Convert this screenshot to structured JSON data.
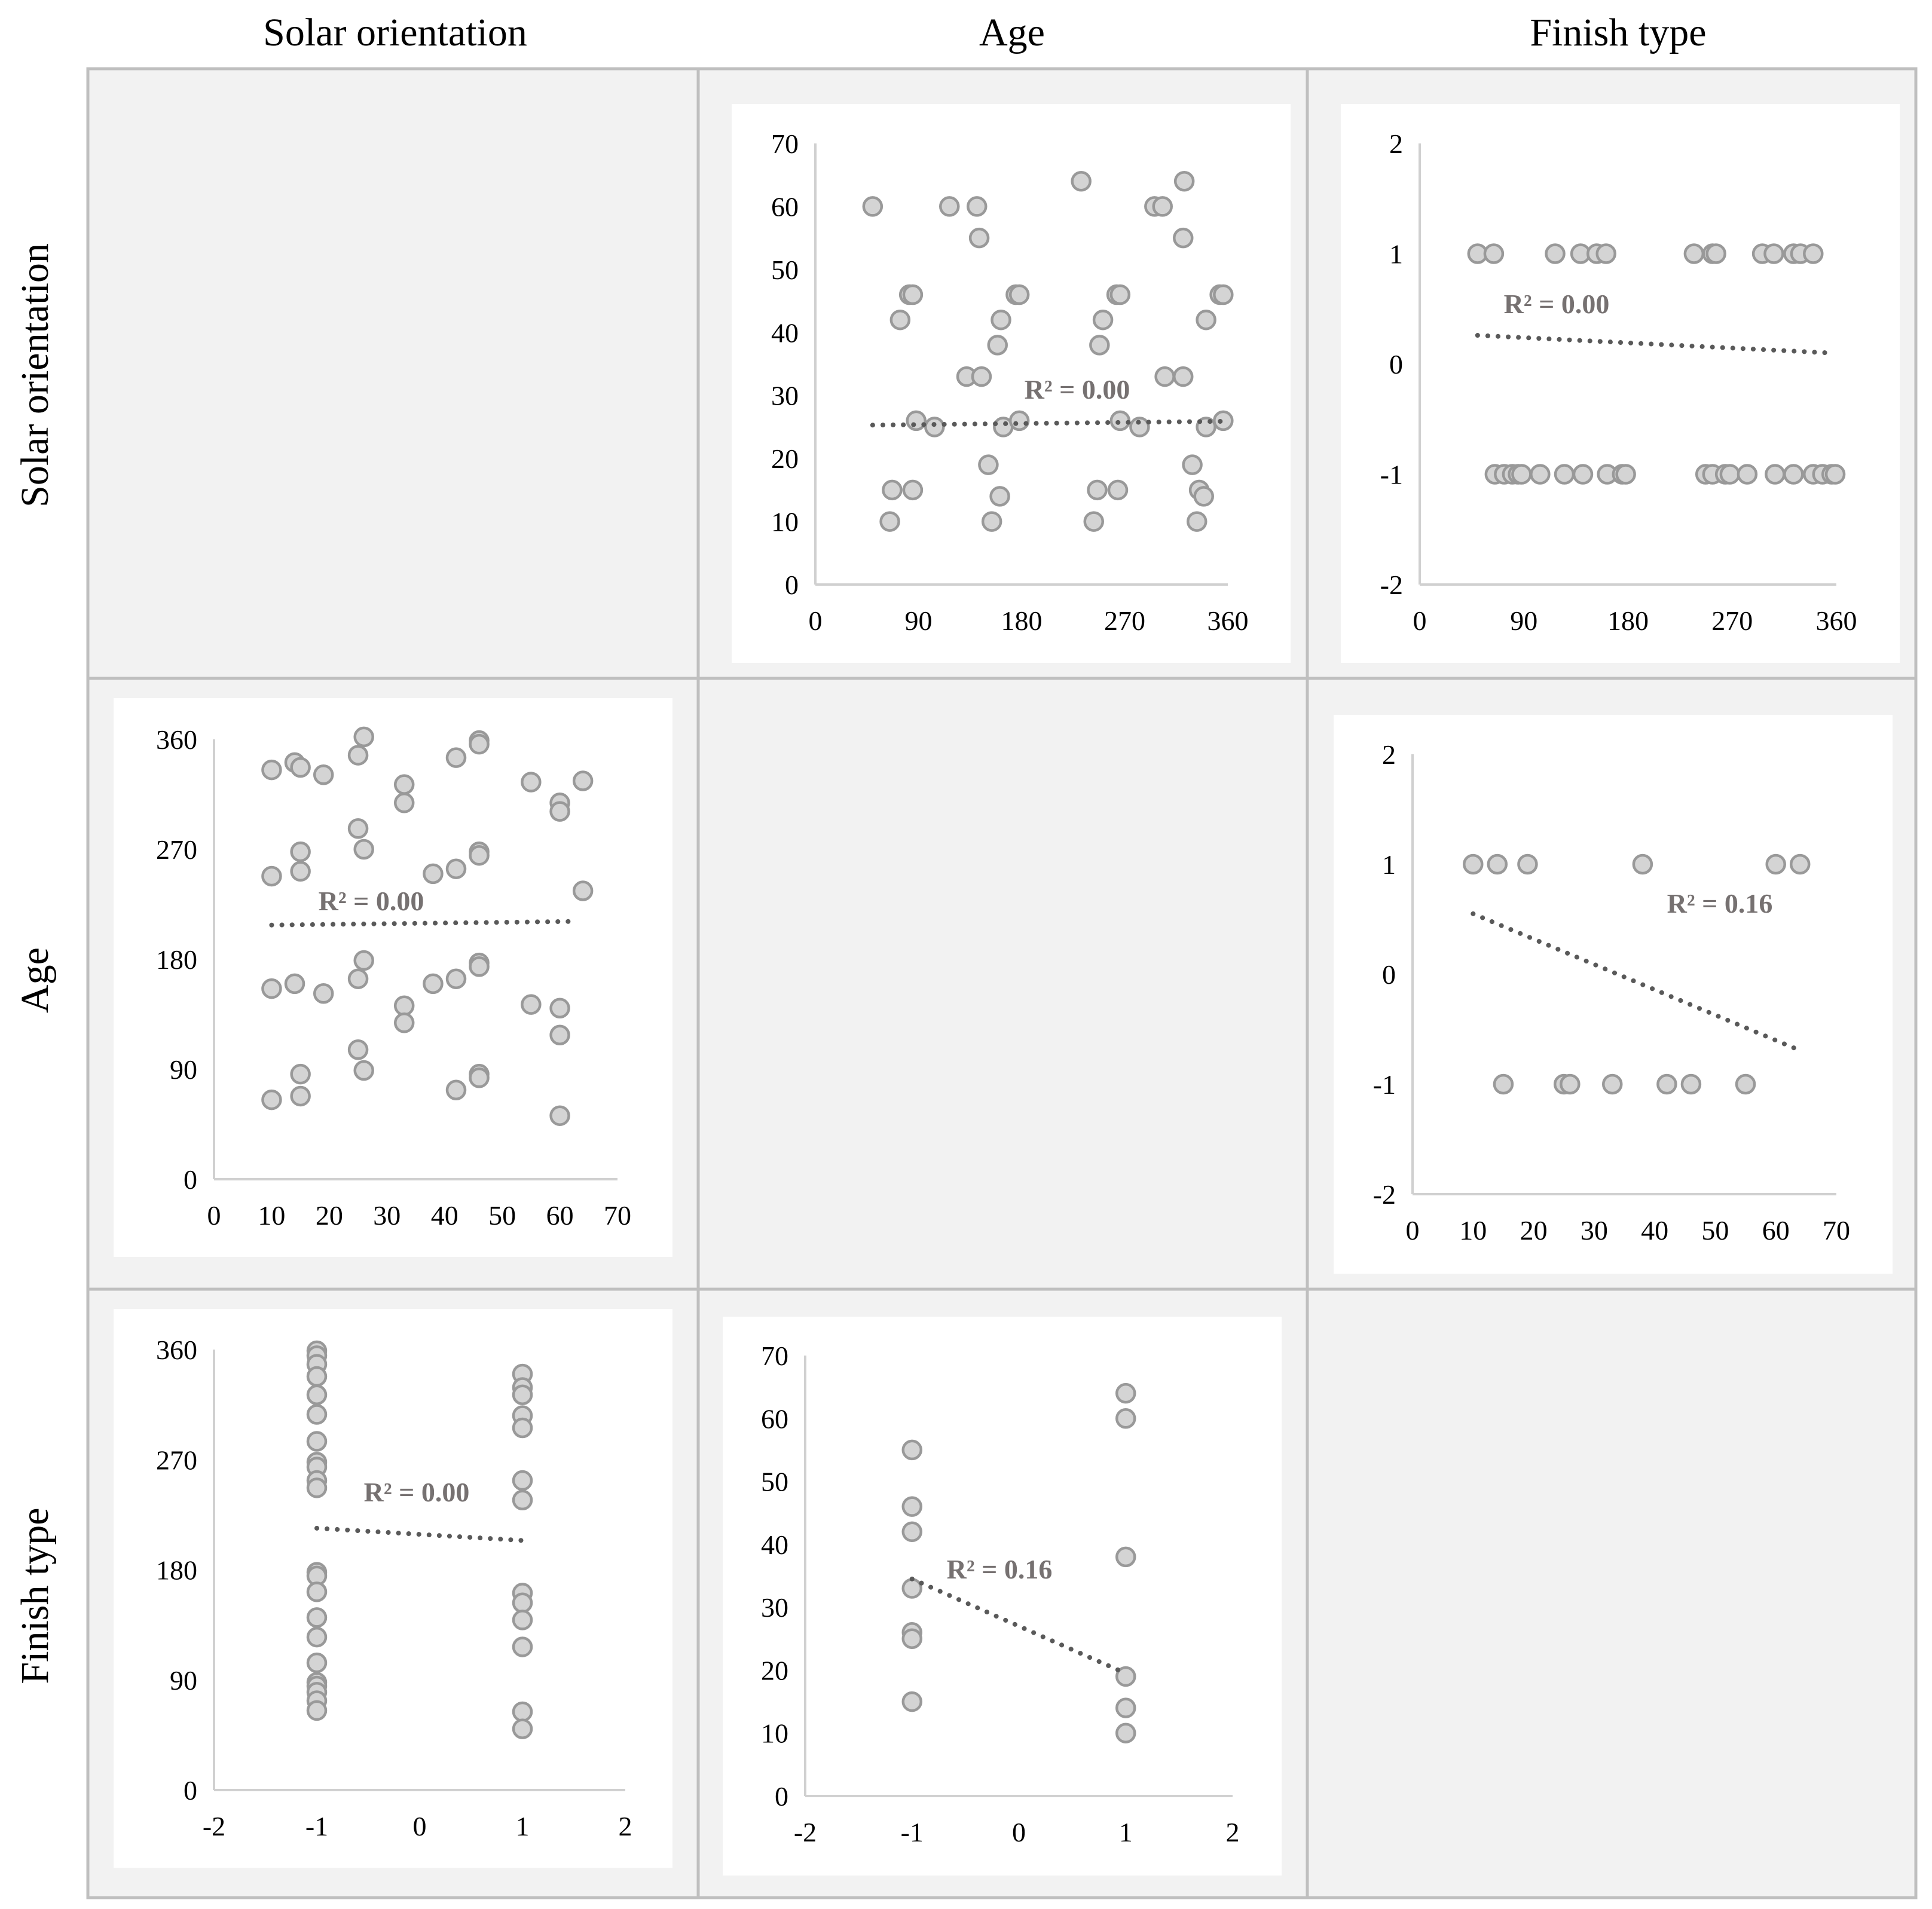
{
  "headers": {
    "columns": [
      "Solar orientation",
      "Age",
      "Finish type"
    ],
    "rows": [
      "Solar orientation",
      "Age",
      "Finish type"
    ]
  },
  "colors": {
    "cell_bg": "#f2f2f2",
    "panel_bg": "#ffffff",
    "grid_line": "#bfbfbf",
    "axis_line": "#d0d0d0",
    "marker_fill": "#d4d4d4",
    "marker_stroke": "#999999",
    "trend": "#595959",
    "r2_text": "#767171",
    "text": "#000000"
  },
  "chart_data": [
    {
      "id": "orientation-vs-age",
      "type": "scatter",
      "row": 0,
      "col": 1,
      "title": "",
      "xlabel": "",
      "ylabel": "",
      "xlim": [
        0,
        360
      ],
      "ylim": [
        0,
        70
      ],
      "xticks": [
        0,
        90,
        180,
        270,
        360
      ],
      "yticks": [
        0,
        10,
        20,
        30,
        40,
        50,
        60,
        70
      ],
      "r2_label": "R² = 0.00",
      "trendline": {
        "x": [
          50,
          355
        ],
        "y": [
          25.3,
          25.9
        ]
      },
      "points": [
        [
          50,
          60
        ],
        [
          65,
          10
        ],
        [
          67,
          15
        ],
        [
          74,
          42
        ],
        [
          82,
          46
        ],
        [
          85,
          46
        ],
        [
          85,
          15
        ],
        [
          88,
          26
        ],
        [
          104,
          25
        ],
        [
          117,
          60
        ],
        [
          132,
          33
        ],
        [
          141,
          60
        ],
        [
          143,
          55
        ],
        [
          145,
          33
        ],
        [
          151,
          19
        ],
        [
          154,
          10
        ],
        [
          159,
          38
        ],
        [
          161,
          14
        ],
        [
          162,
          42
        ],
        [
          164,
          25
        ],
        [
          175,
          46
        ],
        [
          178,
          46
        ],
        [
          178,
          26
        ],
        [
          232,
          64
        ],
        [
          243,
          10
        ],
        [
          246,
          15
        ],
        [
          248,
          38
        ],
        [
          251,
          42
        ],
        [
          263,
          46
        ],
        [
          266,
          46
        ],
        [
          264,
          15
        ],
        [
          266,
          26
        ],
        [
          283,
          25
        ],
        [
          296,
          60
        ],
        [
          303,
          60
        ],
        [
          305,
          33
        ],
        [
          321,
          33
        ],
        [
          321,
          55
        ],
        [
          322,
          64
        ],
        [
          329,
          19
        ],
        [
          333,
          10
        ],
        [
          335,
          15
        ],
        [
          339,
          14
        ],
        [
          341,
          25
        ],
        [
          341,
          42
        ],
        [
          353,
          46
        ],
        [
          356,
          46
        ],
        [
          356,
          26
        ]
      ]
    },
    {
      "id": "orientation-vs-finish",
      "type": "scatter",
      "row": 0,
      "col": 2,
      "title": "",
      "xlabel": "",
      "ylabel": "",
      "xlim": [
        0,
        360
      ],
      "ylim": [
        -2,
        2
      ],
      "xticks": [
        0,
        90,
        180,
        270,
        360
      ],
      "yticks": [
        -2,
        -1,
        0,
        1,
        2
      ],
      "r2_label": "R² = 0.00",
      "trendline": {
        "x": [
          50,
          355
        ],
        "y": [
          0.26,
          0.1
        ]
      },
      "points": [
        [
          50,
          1
        ],
        [
          64,
          1
        ],
        [
          117,
          1
        ],
        [
          139,
          1
        ],
        [
          153,
          1
        ],
        [
          161,
          1
        ],
        [
          237,
          1
        ],
        [
          253,
          1
        ],
        [
          256,
          1
        ],
        [
          296,
          1
        ],
        [
          306,
          1
        ],
        [
          323,
          1
        ],
        [
          329,
          1
        ],
        [
          340,
          1
        ],
        [
          65,
          -1
        ],
        [
          73,
          -1
        ],
        [
          80,
          -1
        ],
        [
          85,
          -1
        ],
        [
          88,
          -1
        ],
        [
          104,
          -1
        ],
        [
          125,
          -1
        ],
        [
          141,
          -1
        ],
        [
          162,
          -1
        ],
        [
          175,
          -1
        ],
        [
          178,
          -1
        ],
        [
          247,
          -1
        ],
        [
          253,
          -1
        ],
        [
          264,
          -1
        ],
        [
          268,
          -1
        ],
        [
          283,
          -1
        ],
        [
          307,
          -1
        ],
        [
          323,
          -1
        ],
        [
          340,
          -1
        ],
        [
          348,
          -1
        ],
        [
          356,
          -1
        ],
        [
          359,
          -1
        ]
      ]
    },
    {
      "id": "age-vs-orientation",
      "type": "scatter",
      "row": 1,
      "col": 0,
      "title": "",
      "xlabel": "",
      "ylabel": "",
      "xlim": [
        0,
        70
      ],
      "ylim": [
        0,
        360
      ],
      "xticks": [
        0,
        10,
        20,
        30,
        40,
        50,
        60,
        70
      ],
      "yticks": [
        0,
        90,
        180,
        270,
        360
      ],
      "r2_label": "R² = 0.00",
      "trendline": {
        "x": [
          10,
          63
        ],
        "y": [
          208,
          211
        ]
      },
      "points": [
        [
          10,
          335
        ],
        [
          10,
          248
        ],
        [
          10,
          156
        ],
        [
          10,
          65
        ],
        [
          14,
          341
        ],
        [
          14,
          160
        ],
        [
          15,
          337
        ],
        [
          15,
          268
        ],
        [
          15,
          252
        ],
        [
          15,
          86
        ],
        [
          15,
          68
        ],
        [
          19,
          331
        ],
        [
          19,
          152
        ],
        [
          25,
          347
        ],
        [
          25,
          287
        ],
        [
          25,
          164
        ],
        [
          25,
          106
        ],
        [
          26,
          362
        ],
        [
          26,
          270
        ],
        [
          26,
          179
        ],
        [
          26,
          89
        ],
        [
          33,
          323
        ],
        [
          33,
          308
        ],
        [
          33,
          142
        ],
        [
          33,
          128
        ],
        [
          38,
          250
        ],
        [
          38,
          160
        ],
        [
          42,
          345
        ],
        [
          42,
          254
        ],
        [
          42,
          164
        ],
        [
          42,
          73
        ],
        [
          46,
          359
        ],
        [
          46,
          356
        ],
        [
          46,
          268
        ],
        [
          46,
          265
        ],
        [
          46,
          177
        ],
        [
          46,
          174
        ],
        [
          46,
          86
        ],
        [
          46,
          83
        ],
        [
          55,
          325
        ],
        [
          55,
          143
        ],
        [
          60,
          308
        ],
        [
          60,
          301
        ],
        [
          60,
          140
        ],
        [
          60,
          118
        ],
        [
          60,
          52
        ],
        [
          64,
          326
        ],
        [
          64,
          236
        ]
      ]
    },
    {
      "id": "age-vs-finish",
      "type": "scatter",
      "row": 1,
      "col": 2,
      "title": "",
      "xlabel": "",
      "ylabel": "",
      "xlim": [
        0,
        70
      ],
      "ylim": [
        -2,
        2
      ],
      "xticks": [
        0,
        10,
        20,
        30,
        40,
        50,
        60,
        70
      ],
      "yticks": [
        -2,
        -1,
        0,
        1,
        2
      ],
      "r2_label": "R² = 0.16",
      "trendline": {
        "x": [
          10,
          63
        ],
        "y": [
          0.55,
          -0.67
        ]
      },
      "points": [
        [
          10,
          1
        ],
        [
          14,
          1
        ],
        [
          19,
          1
        ],
        [
          38,
          1
        ],
        [
          60,
          1
        ],
        [
          64,
          1
        ],
        [
          15,
          -1
        ],
        [
          25,
          -1
        ],
        [
          26,
          -1
        ],
        [
          33,
          -1
        ],
        [
          42,
          -1
        ],
        [
          46,
          -1
        ],
        [
          55,
          -1
        ]
      ]
    },
    {
      "id": "finish-vs-orientation",
      "type": "scatter",
      "row": 2,
      "col": 0,
      "title": "",
      "xlabel": "",
      "ylabel": "",
      "xlim": [
        -2,
        2
      ],
      "ylim": [
        0,
        360
      ],
      "xticks": [
        -2,
        -1,
        0,
        1,
        2
      ],
      "yticks": [
        0,
        90,
        180,
        270,
        360
      ],
      "r2_label": "R² = 0.00",
      "trendline": {
        "x": [
          -1,
          1
        ],
        "y": [
          214,
          204
        ]
      },
      "points": [
        [
          -1,
          359
        ],
        [
          -1,
          355
        ],
        [
          -1,
          348
        ],
        [
          -1,
          338
        ],
        [
          -1,
          323
        ],
        [
          -1,
          307
        ],
        [
          -1,
          285
        ],
        [
          -1,
          268
        ],
        [
          -1,
          264
        ],
        [
          -1,
          253
        ],
        [
          -1,
          247
        ],
        [
          -1,
          178
        ],
        [
          -1,
          175
        ],
        [
          -1,
          162
        ],
        [
          -1,
          141
        ],
        [
          -1,
          125
        ],
        [
          -1,
          104
        ],
        [
          -1,
          88
        ],
        [
          -1,
          85
        ],
        [
          -1,
          80
        ],
        [
          -1,
          73
        ],
        [
          -1,
          65
        ],
        [
          1,
          340
        ],
        [
          1,
          329
        ],
        [
          1,
          323
        ],
        [
          1,
          306
        ],
        [
          1,
          296
        ],
        [
          1,
          253
        ],
        [
          1,
          237
        ],
        [
          1,
          161
        ],
        [
          1,
          153
        ],
        [
          1,
          139
        ],
        [
          1,
          117
        ],
        [
          1,
          64
        ],
        [
          1,
          50
        ]
      ]
    },
    {
      "id": "finish-vs-age",
      "type": "scatter",
      "row": 2,
      "col": 1,
      "title": "",
      "xlabel": "",
      "ylabel": "",
      "xlim": [
        -2,
        2
      ],
      "ylim": [
        0,
        70
      ],
      "xticks": [
        -2,
        -1,
        0,
        1,
        2
      ],
      "yticks": [
        0,
        10,
        20,
        30,
        40,
        50,
        60,
        70
      ],
      "r2_label": "R² = 0.16",
      "trendline": {
        "x": [
          -1,
          1
        ],
        "y": [
          34.5,
          19.5
        ]
      },
      "points": [
        [
          -1,
          55
        ],
        [
          -1,
          46
        ],
        [
          -1,
          42
        ],
        [
          -1,
          33
        ],
        [
          -1,
          26
        ],
        [
          -1,
          25
        ],
        [
          -1,
          15
        ],
        [
          1,
          64
        ],
        [
          1,
          60
        ],
        [
          1,
          38
        ],
        [
          1,
          19
        ],
        [
          1,
          14
        ],
        [
          1,
          10
        ]
      ]
    }
  ]
}
